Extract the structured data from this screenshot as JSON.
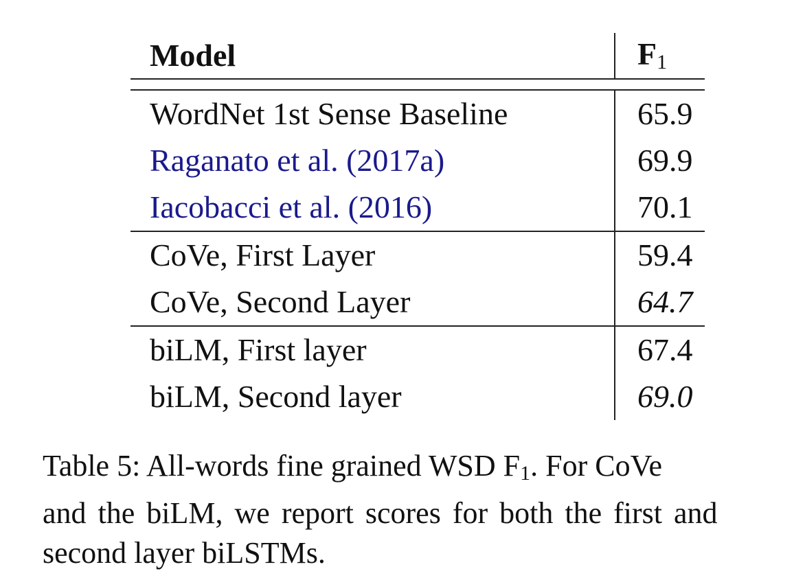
{
  "table": {
    "header": {
      "model": "Model",
      "score_main": "F",
      "score_sub": "1"
    },
    "groups": [
      {
        "rows": [
          {
            "model": "WordNet 1st Sense Baseline",
            "model_style": "plain",
            "score": "65.9",
            "score_style": "plain"
          },
          {
            "model": "Raganato et al.",
            "model_year": "(2017a)",
            "model_style": "link",
            "score": "69.9",
            "score_style": "plain"
          },
          {
            "model": "Iacobacci et al.",
            "model_year": "(2016)",
            "model_style": "link",
            "score": "70.1",
            "score_style": "bold"
          }
        ]
      },
      {
        "rows": [
          {
            "model": "CoVe, First Layer",
            "model_style": "plain",
            "score": "59.4",
            "score_style": "plain"
          },
          {
            "model": "CoVe, Second Layer",
            "model_style": "plain",
            "score": "64.7",
            "score_style": "italic"
          }
        ]
      },
      {
        "rows": [
          {
            "model": "biLM, First layer",
            "model_style": "plain",
            "score": "67.4",
            "score_style": "plain"
          },
          {
            "model": "biLM, Second layer",
            "model_style": "plain",
            "score": "69.0",
            "score_style": "italic"
          }
        ]
      }
    ]
  },
  "caption": {
    "line1_prefix": "Table 5:  All-words fine grained WSD F",
    "line1_sub": "1",
    "line1_suffix": ".  For CoVe",
    "line2": "and the biLM, we report scores for both the first and",
    "line3": "second layer biLSTMs."
  },
  "colors": {
    "text": "#111111",
    "citation_link": "#1a1a8c",
    "rules": "#222222"
  }
}
